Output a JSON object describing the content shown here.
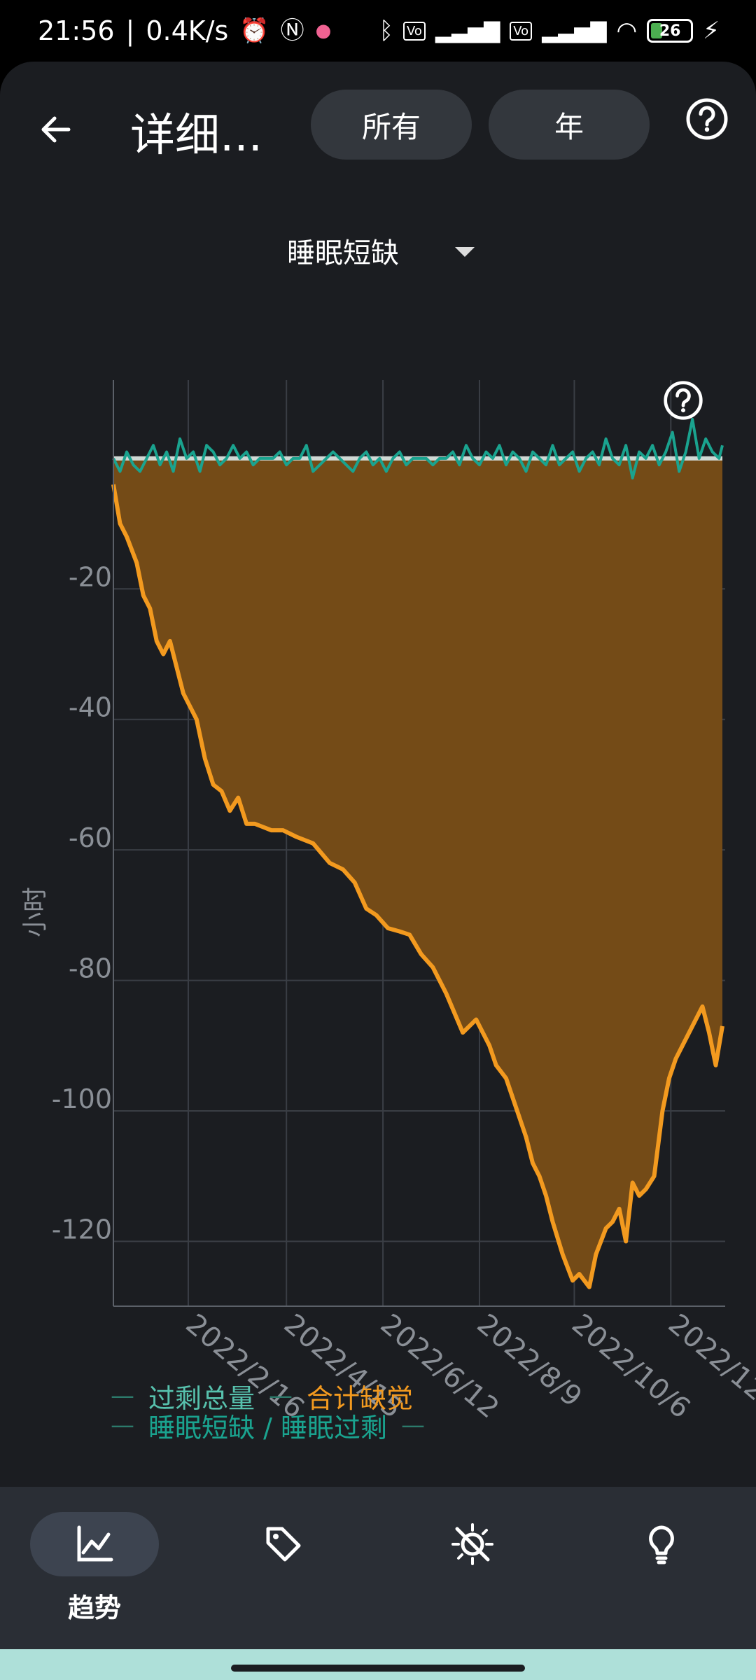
{
  "status_bar": {
    "time": "21:56",
    "net_speed": "0.4K/s",
    "battery": "26",
    "icons": [
      "alarm-icon",
      "nfc-icon",
      "app-notification-icon",
      "bluetooth-icon",
      "volte-icon",
      "signal-icon",
      "volte-icon",
      "signal-icon",
      "wifi-icon",
      "battery-icon",
      "charging-icon"
    ]
  },
  "topbar": {
    "title": "详细...",
    "range_label": "所有",
    "period_label": "年"
  },
  "metric_select": {
    "selected": "睡眠短缺"
  },
  "chart_data": {
    "type": "area",
    "ylabel": "小时",
    "ylim": [
      -128,
      12
    ],
    "y_ticks": [
      -20,
      -40,
      -60,
      -80,
      -100,
      -120
    ],
    "x_ticks": [
      "2022/2/16",
      "2022/4/15",
      "2022/6/12",
      "2022/8/9",
      "2022/10/6",
      "2022/12"
    ],
    "x_tick_positions": [
      45,
      104,
      162,
      220,
      277,
      335
    ],
    "x_range": [
      0,
      366
    ],
    "series": [
      {
        "name": "合计缺觉",
        "color": "#f39a1f",
        "x": [
          0,
          4,
          8,
          14,
          18,
          22,
          26,
          30,
          34,
          38,
          42,
          46,
          50,
          55,
          60,
          65,
          70,
          75,
          80,
          85,
          90,
          95,
          98,
          102,
          110,
          120,
          130,
          138,
          145,
          152,
          158,
          165,
          172,
          178,
          185,
          192,
          200,
          210,
          218,
          222,
          226,
          230,
          236,
          240,
          244,
          248,
          252,
          256,
          260,
          264,
          270,
          276,
          280,
          286,
          290,
          296,
          300,
          304,
          308,
          312,
          316,
          320,
          325,
          330,
          334,
          338,
          342,
          346,
          350,
          354,
          358,
          362,
          366
        ],
        "y": [
          -4,
          -10,
          -12,
          -16,
          -21,
          -23,
          -28,
          -30,
          -28,
          -32,
          -36,
          -38,
          -40,
          -46,
          -50,
          -51,
          -54,
          -52,
          -56,
          -56,
          -56.5,
          -57,
          -57,
          -57,
          -58,
          -59,
          -62,
          -63,
          -65,
          -69,
          -70,
          -72,
          -72.5,
          -73,
          -76,
          -78,
          -82,
          -88,
          -86,
          -88,
          -90,
          -93,
          -95,
          -98,
          -101,
          -104,
          -108,
          -110,
          -113,
          -117,
          -122,
          -126,
          -125,
          -127,
          -122,
          -118,
          -117,
          -115,
          -120,
          -111,
          -113,
          -112,
          -110,
          -100,
          -95,
          -92,
          -90,
          -88,
          -86,
          -84,
          -88,
          -93,
          -87
        ]
      },
      {
        "name": "睡眠短缺 / 睡眠过剩",
        "color": "#1aa38f",
        "x": [
          0,
          4,
          8,
          12,
          16,
          20,
          24,
          28,
          32,
          36,
          40,
          44,
          48,
          52,
          56,
          60,
          64,
          68,
          72,
          76,
          80,
          84,
          88,
          92,
          96,
          100,
          104,
          108,
          112,
          116,
          120,
          124,
          128,
          132,
          136,
          140,
          144,
          148,
          152,
          156,
          160,
          164,
          168,
          172,
          176,
          180,
          184,
          188,
          192,
          196,
          200,
          204,
          208,
          212,
          216,
          220,
          224,
          228,
          232,
          236,
          240,
          244,
          248,
          252,
          256,
          260,
          264,
          268,
          272,
          276,
          280,
          284,
          288,
          292,
          296,
          300,
          304,
          308,
          312,
          316,
          320,
          324,
          328,
          332,
          336,
          340,
          344,
          348,
          352,
          356,
          360,
          364,
          366
        ],
        "y": [
          0,
          -2,
          1,
          -1,
          -2,
          0,
          2,
          -1,
          1,
          -2,
          3,
          0,
          1,
          -2,
          2,
          1,
          -1,
          0,
          2,
          0,
          1,
          -1,
          0,
          0,
          0,
          1,
          -1,
          0,
          0,
          2,
          -2,
          -1,
          0,
          1,
          0,
          -1,
          -2,
          0,
          1,
          -1,
          0,
          -2,
          0,
          1,
          -1,
          0,
          0,
          0,
          -1,
          0,
          0,
          1,
          -1,
          2,
          0,
          -1,
          1,
          0,
          2,
          -1,
          1,
          0,
          -2,
          1,
          0,
          -1,
          2,
          -1,
          0,
          1,
          -2,
          0,
          1,
          -1,
          3,
          0,
          -1,
          2,
          -3,
          1,
          0,
          2,
          -1,
          1,
          4,
          -2,
          1,
          6,
          0,
          3,
          1,
          0,
          2
        ]
      },
      {
        "name": "过剩总量",
        "color": "#cfd8d4",
        "x": [
          0,
          366
        ],
        "y": [
          0,
          0
        ]
      }
    ],
    "legend": [
      "过剩总量",
      "合计缺觉",
      "睡眠短缺 / 睡眠过剩"
    ],
    "legend_position": "bottom-left",
    "grid": true
  },
  "legend": {
    "item1": "过剩总量",
    "item2": "合计缺觉",
    "item3": "睡眠短缺 / 睡眠过剩"
  },
  "bottom_nav": {
    "trends_label": "趋势"
  },
  "colors": {
    "background": "#1b1d21",
    "accent_orange": "#f39a1f",
    "accent_teal": "#1aa38f",
    "area_fill": "#744b17"
  }
}
